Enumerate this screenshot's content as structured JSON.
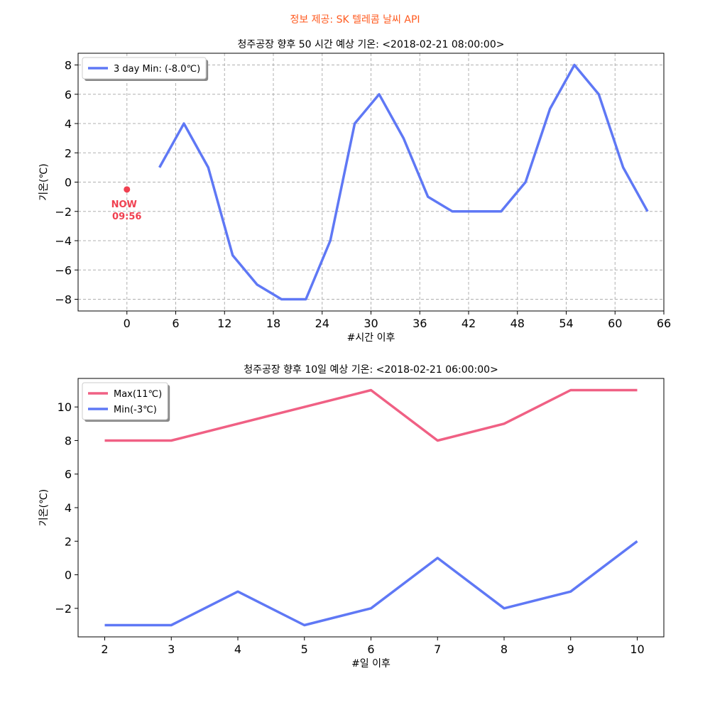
{
  "suptitle": "정보 제공: SK 텔레콤 날씨 API",
  "colors": {
    "suptitle": "#ff5a1f",
    "min_line": "#5f78f5",
    "max_line": "#f06084",
    "now": "#f04050",
    "grid": "#b0b0b0"
  },
  "chart_data": [
    {
      "type": "line",
      "title": "청주공장 향후 50 시간 예상 기온: <2018-02-21 08:00:00>",
      "xlabel": "#시간 이후",
      "ylabel": "기온(℃)",
      "xlim": [
        -6,
        66
      ],
      "ylim": [
        -8.8,
        8.8
      ],
      "xticks": [
        0,
        6,
        12,
        18,
        24,
        30,
        36,
        42,
        48,
        54,
        60,
        66
      ],
      "yticks": [
        -8,
        -6,
        -4,
        -2,
        0,
        2,
        4,
        6,
        8
      ],
      "grid": true,
      "legend_position": "top-left",
      "series": [
        {
          "name": "3 day Min: (-8.0℃)",
          "color_key": "min_line",
          "x": [
            4,
            7,
            10,
            13,
            16,
            19,
            22,
            25,
            28,
            31,
            34,
            37,
            40,
            43,
            46,
            49,
            52,
            55,
            58,
            61,
            64
          ],
          "y": [
            1,
            4,
            1,
            -5,
            -7,
            -8,
            -8,
            -4,
            4,
            6,
            3,
            -1,
            -2,
            -2,
            -2,
            0,
            5,
            8,
            6,
            1,
            -2
          ]
        }
      ],
      "annotation": {
        "x": 0,
        "y": -0.5,
        "label_line1": "NOW",
        "label_line2": "09:56"
      }
    },
    {
      "type": "line",
      "title": "청주공장 향후 10일 예상 기온: <2018-02-21 06:00:00>",
      "xlabel": "#일 이후",
      "ylabel": "기온(℃)",
      "xlim": [
        1.6,
        10.4
      ],
      "ylim": [
        -3.7,
        11.7
      ],
      "xticks": [
        2,
        3,
        4,
        5,
        6,
        7,
        8,
        9,
        10
      ],
      "yticks": [
        -2,
        0,
        2,
        4,
        6,
        8,
        10
      ],
      "grid": false,
      "legend_position": "top-left",
      "series": [
        {
          "name": "Max(11℃)",
          "color_key": "max_line",
          "x": [
            2,
            3,
            4,
            5,
            6,
            7,
            8,
            9,
            10
          ],
          "y": [
            8,
            8,
            9,
            10,
            11,
            8,
            9,
            11,
            11
          ]
        },
        {
          "name": "Min(-3℃)",
          "color_key": "min_line",
          "x": [
            2,
            3,
            4,
            5,
            6,
            7,
            8,
            9,
            10
          ],
          "y": [
            -3,
            -3,
            -1,
            -3,
            -2,
            1,
            -2,
            -1,
            2
          ]
        }
      ]
    }
  ]
}
